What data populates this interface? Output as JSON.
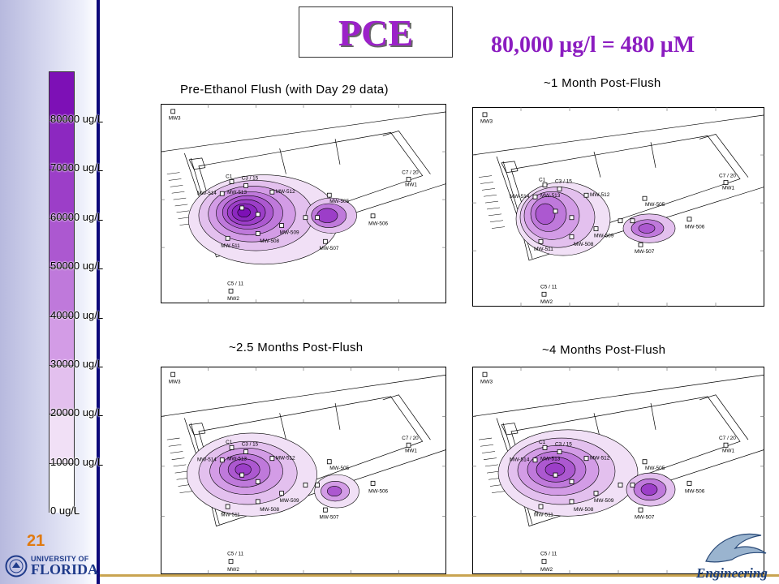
{
  "slide": {
    "title": "PCE",
    "concentration_note": "80,000 µg/l = 480 µM",
    "number": "21"
  },
  "legend": {
    "labels": [
      "80000 ug/L",
      "70000 ug/L",
      "60000 ug/L",
      "50000 ug/L",
      "40000 ug/L",
      "30000 ug/L",
      "20000 ug/L",
      "10000 ug/L",
      "0 ug/L"
    ],
    "colors": [
      "#7d10b6",
      "#8c28c0",
      "#9c3ec8",
      "#ac58d0",
      "#bf79db",
      "#d39ce6",
      "#e3c0ee",
      "#f1e0f6",
      "#ffffff"
    ]
  },
  "panels": [
    {
      "title": "Pre-Ethanol Flush (with Day 29 data)",
      "wells": {
        "mw3": "MW3",
        "c1": "C1",
        "c3_15": "C3 / 15",
        "mw514": "MW-514",
        "mw513": "MW-513",
        "mw512": "MW-512",
        "mw505": "MW-505",
        "mw506": "MW-506",
        "mw509": "MW-509",
        "mw508": "MW-508",
        "mw511": "MW-511",
        "mw507": "MW-507",
        "c7_20": "C7 / 20",
        "mw1": "MW1",
        "c5_11": "C5 / 11",
        "mw2": "MW2"
      }
    },
    {
      "title": "~1 Month Post-Flush",
      "wells": {
        "mw3": "MW3",
        "c1": "C1",
        "c3_15": "C3 / 15",
        "mw514": "MW-514",
        "mw513": "MW-513",
        "mw512": "MW-512",
        "mw505": "MW-505",
        "mw506": "MW-506",
        "mw509": "MW-509",
        "mw508": "MW-508",
        "mw511": "MW-511",
        "mw507": "MW-507",
        "c7_20": "C7 / 20",
        "mw1": "MW1",
        "c5_11": "C5 / 11",
        "mw2": "MW2"
      }
    },
    {
      "title": "~2.5 Months Post-Flush",
      "wells": {
        "mw3": "MW3",
        "c1": "C1",
        "c3_15": "C3 / 15",
        "mw514": "MW-514",
        "mw513": "MW-513",
        "mw512": "MW-512",
        "mw505": "MW-505",
        "mw506": "MW-506",
        "mw509": "MW-509",
        "mw508": "MW-508",
        "mw511": "MW-511",
        "mw507": "MW-507",
        "c7_20": "C7 / 20",
        "mw1": "MW1",
        "c5_11": "C5 / 11",
        "mw2": "MW2"
      }
    },
    {
      "title": "~4 Months Post-Flush",
      "wells": {
        "mw3": "MW3",
        "c1": "C1",
        "c3_15": "C3 / 15",
        "mw514": "MW-514",
        "mw513": "MW-513",
        "mw512": "MW-512",
        "mw505": "MW-505",
        "mw506": "MW-506",
        "mw509": "MW-509",
        "mw508": "MW-508",
        "mw511": "MW-511",
        "mw507": "MW-507",
        "c7_20": "C7 / 20",
        "mw1": "MW1",
        "c5_11": "C5 / 11",
        "mw2": "MW2"
      }
    }
  ],
  "logos": {
    "university_top": "UNIVERSITY OF",
    "university_main": "FLORIDA",
    "engineering": "Engineering"
  }
}
